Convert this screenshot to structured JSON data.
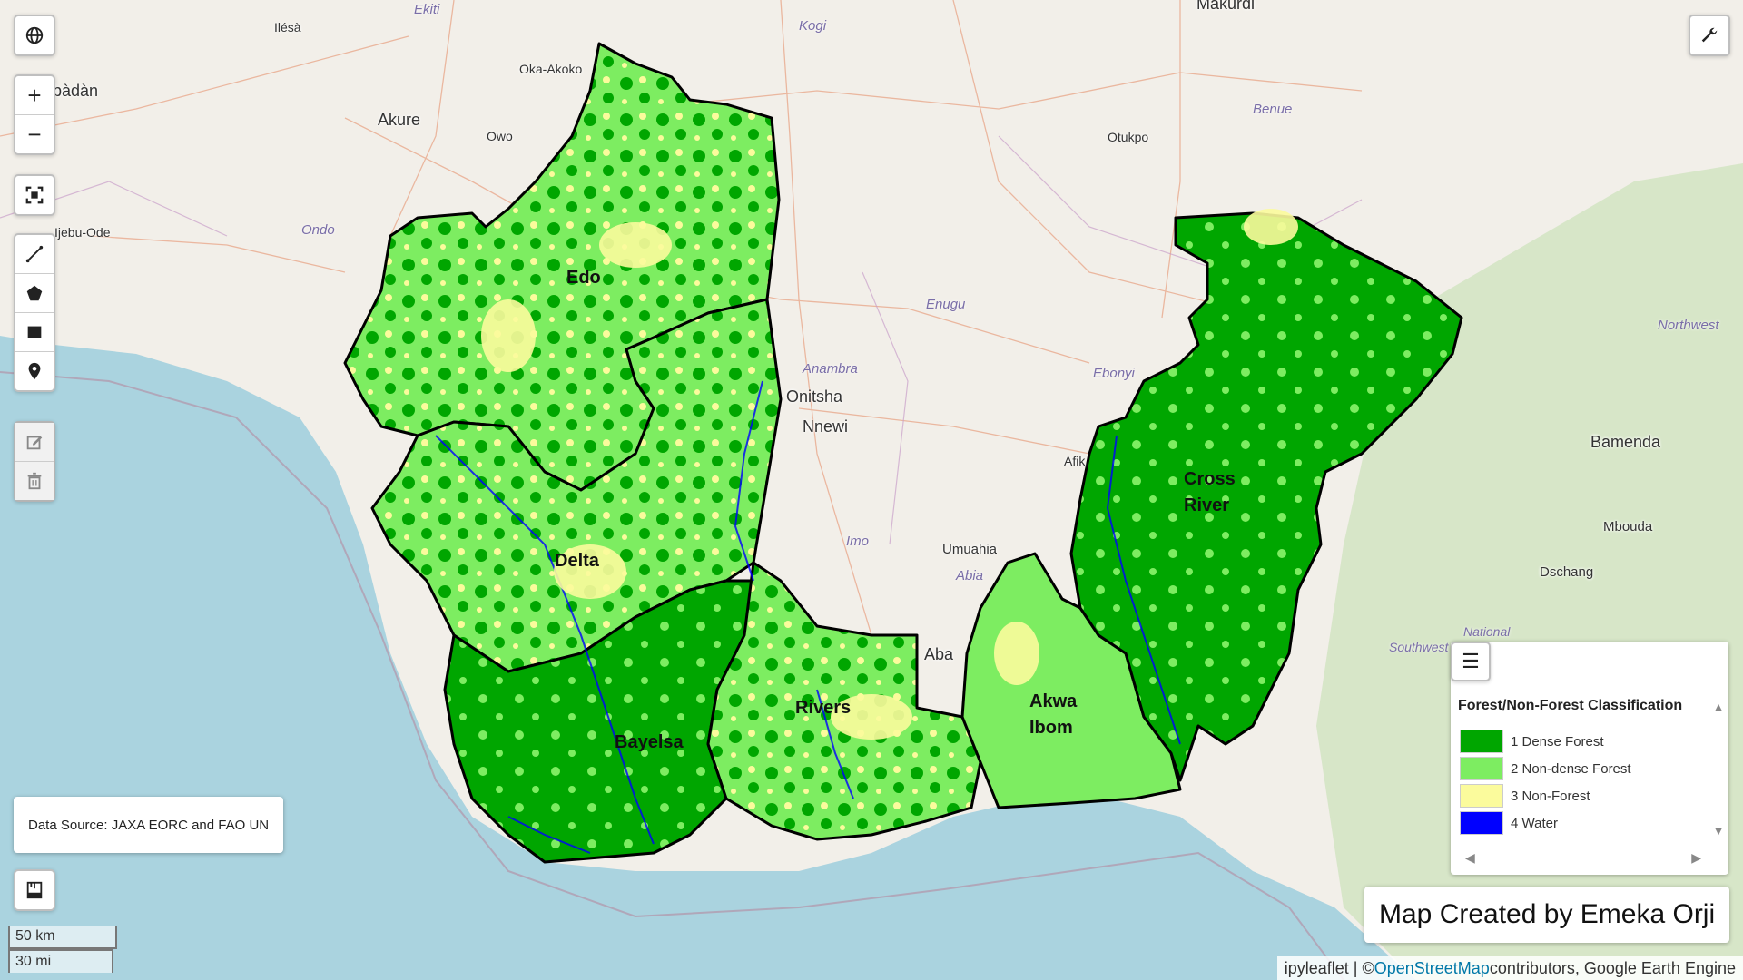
{
  "places": {
    "ibadan": "bàdàn",
    "ilesa": "Ilésà",
    "ekiti": "Ekiti",
    "kogi": "Kogi",
    "makurdi": "Makurdi",
    "oka_akoko": "Oka-Akoko",
    "akure": "Akure",
    "owo": "Owo",
    "otukpo": "Otukpo",
    "benue": "Benue",
    "ijebu_ode": "Ijebu-Ode",
    "ondo": "Ondo",
    "enugu": "Enugu",
    "anambra": "Anambra",
    "onitsha": "Onitsha",
    "nnewi": "Nnewi",
    "ebonyi": "Ebonyi",
    "afikpo": "Afik",
    "imo": "Imo",
    "umuahia": "Umuahia",
    "abia": "Abia",
    "aba": "Aba",
    "bamenda": "Bamenda",
    "northwest": "Northwest",
    "mbouda": "Mbouda",
    "dschang": "Dschang",
    "national_park": "National\nPark",
    "southwest": "Southwest"
  },
  "states": {
    "edo": "Edo",
    "delta": "Delta",
    "bayelsa": "Bayelsa",
    "rivers": "Rivers",
    "akwa_ibom_1": "Akwa",
    "akwa_ibom_2": "Ibom",
    "cross_river_1": "Cross",
    "cross_river_2": "River"
  },
  "legend": {
    "title": "Forest/Non-Forest Classification",
    "items": [
      {
        "label": "1 Dense Forest",
        "color": "#00a600"
      },
      {
        "label": "2 Non-dense Forest",
        "color": "#7ded61"
      },
      {
        "label": "3 Non-Forest",
        "color": "#fbfb9c"
      },
      {
        "label": "4 Water",
        "color": "#0000ff"
      }
    ]
  },
  "data_source": "Data Source: JAXA EORC and FAO UN",
  "credit": "Map Created by Emeka Orji",
  "attribution": {
    "prefix": "ipyleaflet | © ",
    "link": "OpenStreetMap",
    "suffix": " contributors, Google Earth Engine"
  },
  "scale": {
    "km": "50 km",
    "mi": "30 mi"
  },
  "colors": {
    "sea": "#aad3df",
    "land": "#f2efe9",
    "dense_forest": "#00a600",
    "non_dense_forest": "#7ded61",
    "non_forest": "#fbfb9c",
    "water": "#0000ff"
  }
}
